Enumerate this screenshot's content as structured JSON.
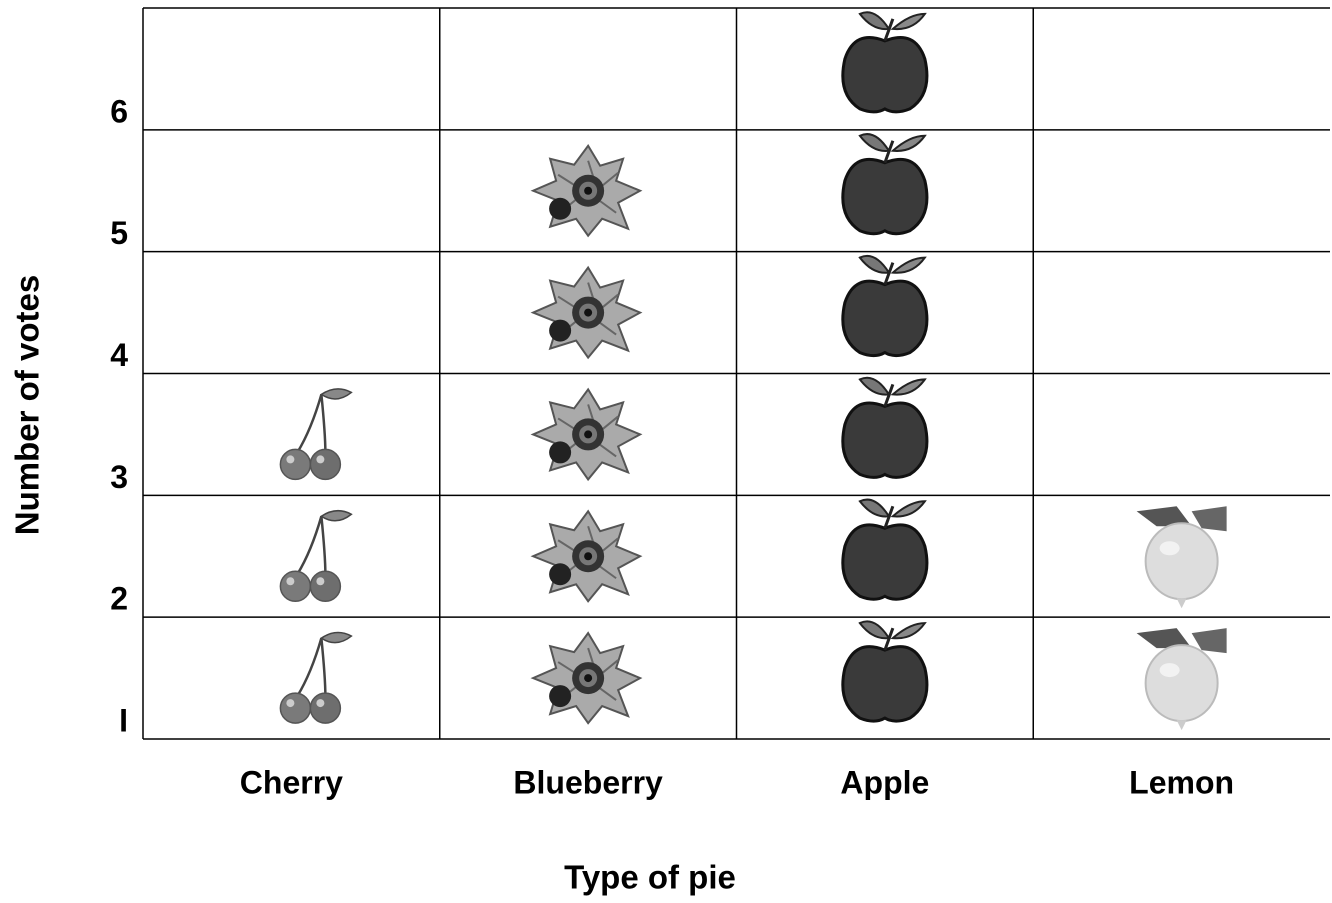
{
  "chart_data": {
    "type": "pictograph",
    "x_label": "Type of pie",
    "y_label": "Number of votes",
    "categories": [
      "Cherry",
      "Blueberry",
      "Apple",
      "Lemon"
    ],
    "values": [
      3,
      5,
      6,
      2
    ],
    "ylim": [
      1,
      7
    ],
    "yticks": [
      {
        "value": 1,
        "label": "I"
      },
      2,
      3,
      4,
      5,
      6
    ],
    "grid": true
  }
}
